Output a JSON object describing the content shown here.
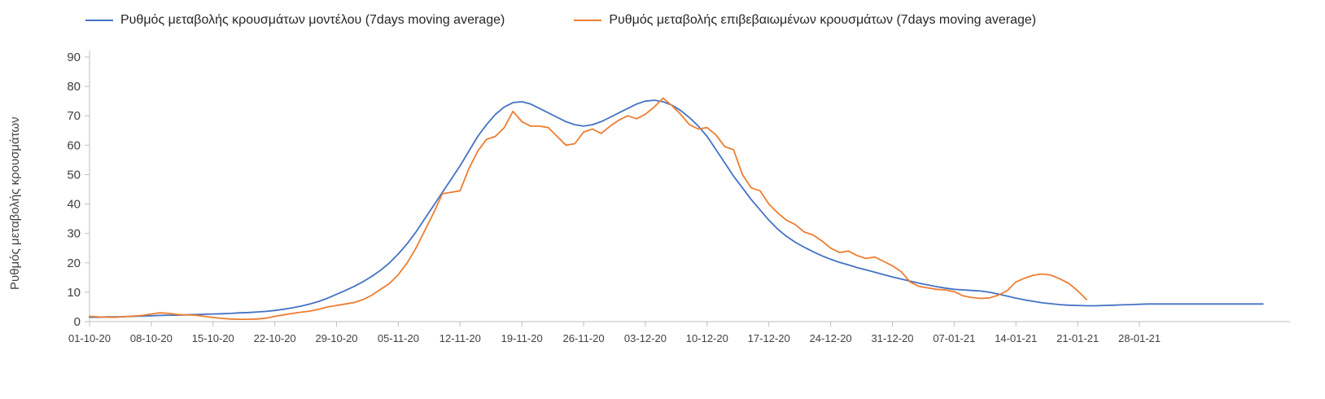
{
  "y_axis_title": "Ρυθμός μεταβολής κρουσμάτων",
  "colors": {
    "model_line": "#4472C4",
    "confirmed_line": "#ED7D31",
    "axis": "#BFBFBF",
    "tick_text": "#404040"
  },
  "chart_data": {
    "type": "line",
    "title": "",
    "xlabel": "",
    "ylabel": "Ρυθμός μεταβολής κρουσμάτων",
    "ylim": [
      0,
      90
    ],
    "y_ticks": [
      0,
      10,
      20,
      30,
      40,
      50,
      60,
      70,
      80,
      90
    ],
    "grid": false,
    "legend_position": "top",
    "x_tick_labels": [
      "01-10-20",
      "08-10-20",
      "15-10-20",
      "22-10-20",
      "29-10-20",
      "05-11-20",
      "12-11-20",
      "19-11-20",
      "26-11-20",
      "03-12-20",
      "10-12-20",
      "17-12-20",
      "24-12-20",
      "31-12-20",
      "07-01-21",
      "14-01-21",
      "21-01-21",
      "28-01-21"
    ],
    "x_tick_days": [
      0,
      7,
      14,
      21,
      28,
      35,
      42,
      49,
      56,
      63,
      70,
      77,
      84,
      91,
      98,
      105,
      112,
      119
    ],
    "x_unit": "days since 01-10-20, daily points",
    "series": [
      {
        "name": "Ρυθμός μεταβολής κρουσμάτων μοντέλου (7days moving average)",
        "data_name": "model-series-line",
        "color": "#4472C4",
        "start_day": 0,
        "values": [
          1.5,
          1.5,
          1.6,
          1.6,
          1.7,
          1.8,
          1.9,
          2.0,
          2.1,
          2.2,
          2.2,
          2.3,
          2.4,
          2.5,
          2.6,
          2.7,
          2.8,
          3.0,
          3.1,
          3.3,
          3.5,
          3.8,
          4.2,
          4.7,
          5.3,
          6.0,
          6.9,
          8.0,
          9.3,
          10.6,
          12.0,
          13.6,
          15.4,
          17.5,
          20.0,
          23.0,
          26.5,
          30.5,
          35.0,
          39.5,
          44.0,
          48.5,
          53.0,
          58.0,
          63.0,
          67.0,
          70.5,
          73.0,
          74.5,
          74.8,
          74.0,
          72.5,
          71.0,
          69.5,
          68.0,
          67.0,
          66.5,
          67.0,
          68.0,
          69.5,
          71.0,
          72.5,
          74.0,
          75.0,
          75.3,
          74.8,
          73.6,
          71.8,
          69.4,
          66.5,
          63.0,
          58.5,
          54.0,
          49.5,
          45.5,
          41.5,
          38.0,
          34.5,
          31.5,
          29.0,
          27.0,
          25.3,
          23.8,
          22.4,
          21.2,
          20.2,
          19.3,
          18.4,
          17.6,
          16.8,
          16.0,
          15.2,
          14.5,
          13.8,
          13.1,
          12.5,
          11.9,
          11.4,
          11.0,
          10.8,
          10.6,
          10.4,
          10.0,
          9.4,
          8.7,
          8.0,
          7.4,
          6.9,
          6.4,
          6.1,
          5.8,
          5.6,
          5.5,
          5.4,
          5.4,
          5.5,
          5.6,
          5.7,
          5.8,
          5.9,
          6.0,
          6.0,
          6.0,
          6.0,
          6.0,
          6.0,
          6.0,
          6.0,
          6.0,
          6.0,
          6.0,
          6.0,
          6.0,
          6.0
        ]
      },
      {
        "name": "Ρυθμός μεταβολής επιβεβαιωμένων κρουσμάτων (7days moving average)",
        "data_name": "confirmed-series-line",
        "color": "#ED7D31",
        "start_day": 0,
        "values": [
          1.8,
          1.6,
          1.5,
          1.5,
          1.7,
          1.9,
          2.1,
          2.6,
          3.0,
          2.8,
          2.4,
          2.3,
          2.2,
          1.8,
          1.4,
          1.1,
          0.9,
          0.8,
          0.8,
          0.9,
          1.2,
          1.8,
          2.3,
          2.8,
          3.2,
          3.6,
          4.2,
          5.0,
          5.5,
          6.0,
          6.5,
          7.5,
          9.0,
          11.0,
          13.0,
          16.0,
          20.0,
          25.0,
          31.0,
          37.0,
          43.5,
          44.0,
          44.5,
          52.0,
          58.0,
          62.0,
          63.0,
          66.0,
          71.5,
          68.0,
          66.5,
          66.5,
          66.0,
          63.0,
          60.0,
          60.5,
          64.5,
          65.5,
          64.0,
          66.5,
          68.5,
          70.0,
          69.0,
          70.5,
          73.0,
          76.0,
          73.5,
          70.5,
          67.0,
          65.5,
          66.0,
          63.5,
          59.5,
          58.5,
          50.0,
          45.5,
          44.5,
          40.0,
          37.0,
          34.5,
          33.0,
          30.5,
          29.5,
          27.5,
          25.0,
          23.5,
          24.0,
          22.5,
          21.5,
          22.0,
          20.5,
          19.0,
          17.0,
          13.5,
          12.0,
          11.5,
          11.0,
          10.8,
          10.2,
          8.8,
          8.2,
          7.9,
          8.1,
          9.0,
          10.5,
          13.5,
          14.8,
          15.8,
          16.2,
          15.8,
          14.5,
          13.0,
          10.5,
          7.5
        ]
      }
    ]
  }
}
